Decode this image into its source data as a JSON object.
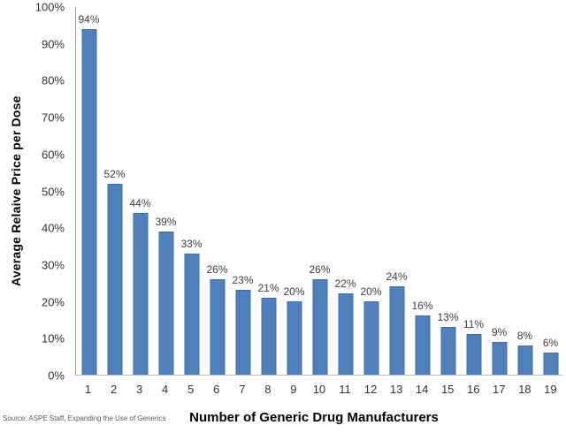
{
  "chart_data": {
    "type": "bar",
    "title": "",
    "categories": [
      "1",
      "2",
      "3",
      "4",
      "5",
      "6",
      "7",
      "8",
      "9",
      "10",
      "11",
      "12",
      "13",
      "14",
      "15",
      "16",
      "17",
      "18",
      "19"
    ],
    "values": [
      94,
      52,
      44,
      39,
      33,
      26,
      23,
      21,
      20,
      26,
      22,
      20,
      24,
      16,
      13,
      11,
      9,
      8,
      6
    ],
    "data_labels": [
      "94%",
      "52%",
      "44%",
      "39%",
      "33%",
      "26%",
      "23%",
      "21%",
      "20%",
      "26%",
      "22%",
      "20%",
      "24%",
      "16%",
      "13%",
      "11%",
      "9%",
      "8%",
      "6%"
    ],
    "xlabel": "Number of Generic Drug Manufacturers",
    "ylabel": "Average Relaive Price per Dose",
    "ylim": [
      0,
      100
    ],
    "y_ticks": [
      "0%",
      "10%",
      "20%",
      "30%",
      "40%",
      "50%",
      "60%",
      "70%",
      "80%",
      "90%",
      "100%"
    ],
    "grid": false,
    "legend": false,
    "bar_color": "#4e80bc",
    "bar_border_color": "#3c6ca8"
  },
  "source_note": "Source: ASPE Staff, Expanding the Use of Generics"
}
